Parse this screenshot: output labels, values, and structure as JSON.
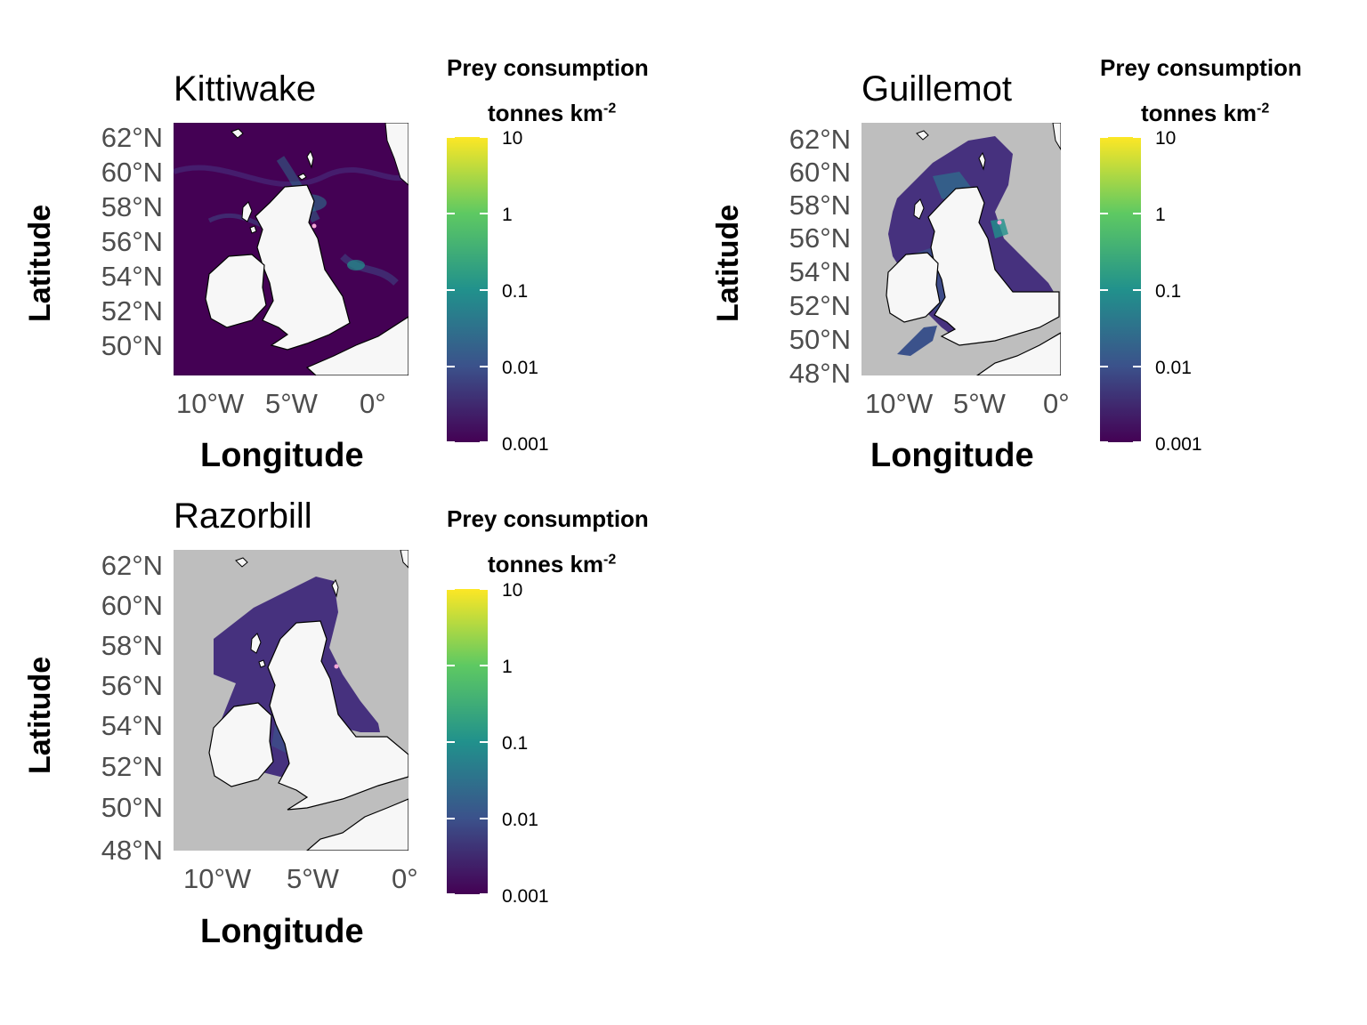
{
  "panels": [
    {
      "title": "Kittiwake",
      "ylabel": "Latitude",
      "xlabel": "Longitude",
      "yticks": [
        "62°N",
        "60°N",
        "58°N",
        "56°N",
        "54°N",
        "52°N",
        "50°N"
      ],
      "xticks": [
        "10°W",
        "5°W",
        "0°"
      ],
      "legend": {
        "title_line1": "Prey consumption",
        "title_line2": "tonnes km",
        "title_sup": "-2",
        "labels": [
          "10",
          "1",
          "0.1",
          "0.01",
          "0.001"
        ]
      }
    },
    {
      "title": "Guillemot",
      "ylabel": "Latitude",
      "xlabel": "Longitude",
      "yticks": [
        "62°N",
        "60°N",
        "58°N",
        "56°N",
        "54°N",
        "52°N",
        "50°N",
        "48°N"
      ],
      "xticks": [
        "10°W",
        "5°W",
        "0°"
      ],
      "legend": {
        "title_line1": "Prey consumption",
        "title_line2": "tonnes km",
        "title_sup": "-2",
        "labels": [
          "10",
          "1",
          "0.1",
          "0.01",
          "0.001"
        ]
      }
    },
    {
      "title": "Razorbill",
      "ylabel": "Latitude",
      "xlabel": "Longitude",
      "yticks": [
        "62°N",
        "60°N",
        "58°N",
        "56°N",
        "54°N",
        "52°N",
        "50°N",
        "48°N"
      ],
      "xticks": [
        "10°W",
        "5°W",
        "0°"
      ],
      "legend": {
        "title_line1": "Prey consumption",
        "title_line2": "tonnes km",
        "title_sup": "-2",
        "labels": [
          "10",
          "1",
          "0.1",
          "0.01",
          "0.001"
        ]
      }
    }
  ],
  "colors": {
    "land": "#f7f7f7",
    "no_data": "#bebebe",
    "low": "#440154",
    "mid": "#21918c",
    "high": "#fde725"
  }
}
